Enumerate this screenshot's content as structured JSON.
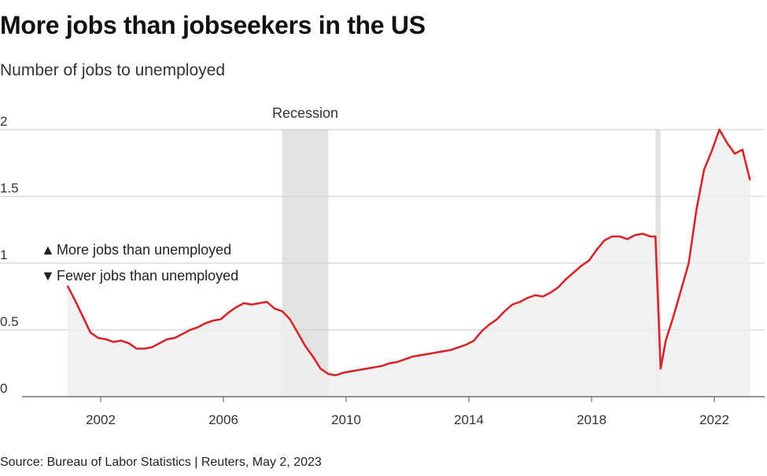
{
  "header": {
    "title": "More jobs than jobseekers in the US",
    "subtitle": "Number of jobs to unemployed"
  },
  "footer": {
    "source": "Source: Bureau of Labor Statistics | Reuters, May 2, 2023"
  },
  "legend": {
    "up_symbol": "▲",
    "up_label": "More jobs than unemployed",
    "down_symbol": "▼",
    "down_label": "Fewer jobs than unemployed"
  },
  "colors": {
    "line": "#d7262b",
    "area": "#efefef",
    "recession": "#e3e3e3",
    "grid": "#c8c8c8",
    "axis": "#555555"
  },
  "chart_data": {
    "type": "area",
    "title": "More jobs than jobseekers in the US",
    "subtitle": "Number of jobs to unemployed",
    "ylim": [
      0,
      2
    ],
    "xlim": [
      "2000-01",
      "2023-06"
    ],
    "y_ticks": [
      "0",
      "0.5",
      "1",
      "1.5",
      "2"
    ],
    "x_ticks": [
      "2002",
      "2006",
      "2010",
      "2014",
      "2018",
      "2022"
    ],
    "grid": true,
    "recessions": [
      {
        "label": "Recession",
        "start": "2007-12",
        "end": "2009-06"
      },
      {
        "label": "",
        "start": "2020-02",
        "end": "2020-04"
      }
    ],
    "series": [
      {
        "x": [
          "2000-12",
          "2001-03",
          "2001-06",
          "2001-09",
          "2001-12",
          "2002-03",
          "2002-06",
          "2002-09",
          "2002-12",
          "2003-03",
          "2003-06",
          "2003-09",
          "2003-12",
          "2004-03",
          "2004-06",
          "2004-09",
          "2004-12",
          "2005-03",
          "2005-06",
          "2005-09",
          "2005-12",
          "2006-03",
          "2006-06",
          "2006-09",
          "2006-12",
          "2007-03",
          "2007-06",
          "2007-09",
          "2007-12",
          "2008-03",
          "2008-06",
          "2008-09",
          "2008-12",
          "2009-03",
          "2009-06",
          "2009-09",
          "2009-12",
          "2010-03",
          "2010-06",
          "2010-09",
          "2010-12",
          "2011-03",
          "2011-06",
          "2011-09",
          "2011-12",
          "2012-03",
          "2012-06",
          "2012-09",
          "2012-12",
          "2013-03",
          "2013-06",
          "2013-09",
          "2013-12",
          "2014-03",
          "2014-06",
          "2014-09",
          "2014-12",
          "2015-03",
          "2015-06",
          "2015-09",
          "2015-12",
          "2016-03",
          "2016-06",
          "2016-09",
          "2016-12",
          "2017-03",
          "2017-06",
          "2017-09",
          "2017-12",
          "2018-03",
          "2018-06",
          "2018-09",
          "2018-12",
          "2019-03",
          "2019-06",
          "2019-09",
          "2019-12",
          "2020-02",
          "2020-04",
          "2020-06",
          "2020-09",
          "2020-12",
          "2021-03",
          "2021-06",
          "2021-09",
          "2021-12",
          "2022-03",
          "2022-06",
          "2022-09",
          "2022-12",
          "2023-03"
        ],
        "values": [
          0.83,
          0.72,
          0.6,
          0.48,
          0.44,
          0.43,
          0.41,
          0.42,
          0.4,
          0.36,
          0.36,
          0.37,
          0.4,
          0.43,
          0.44,
          0.47,
          0.5,
          0.52,
          0.55,
          0.57,
          0.58,
          0.63,
          0.67,
          0.7,
          0.69,
          0.7,
          0.71,
          0.66,
          0.64,
          0.58,
          0.48,
          0.38,
          0.3,
          0.21,
          0.17,
          0.16,
          0.18,
          0.19,
          0.2,
          0.21,
          0.22,
          0.23,
          0.25,
          0.26,
          0.28,
          0.3,
          0.31,
          0.32,
          0.33,
          0.34,
          0.35,
          0.37,
          0.39,
          0.42,
          0.49,
          0.54,
          0.58,
          0.64,
          0.69,
          0.71,
          0.74,
          0.76,
          0.75,
          0.78,
          0.82,
          0.88,
          0.93,
          0.98,
          1.02,
          1.1,
          1.17,
          1.2,
          1.2,
          1.18,
          1.21,
          1.22,
          1.2,
          1.2,
          0.21,
          0.42,
          0.6,
          0.8,
          1.0,
          1.4,
          1.7,
          1.84,
          2.0,
          1.9,
          1.82,
          1.85,
          1.62
        ]
      }
    ]
  }
}
